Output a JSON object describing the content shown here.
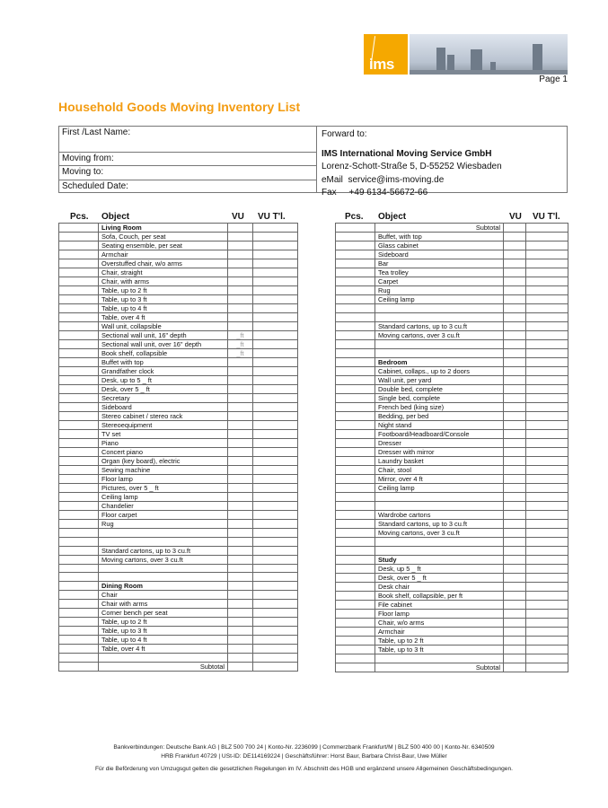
{
  "header": {
    "logo_text": "ims",
    "page_label": "Page 1",
    "title": "Household Goods Moving Inventory List"
  },
  "colors": {
    "accent": "#f39c12",
    "logo": "#f5a800"
  },
  "info": {
    "first_last_name": "First /Last Name:",
    "moving_from": "Moving from:",
    "moving_to": "Moving to:",
    "scheduled_date": "Scheduled Date:",
    "forward_to": "Forward to:",
    "company": "IMS International Moving Service GmbH",
    "address": "Lorenz-Schott-Straße 5, D-55252 Wiesbaden",
    "email": "eMail  service@ims-moving.de",
    "fax": "Fax     +49 6134-56672-66"
  },
  "columns": {
    "pcs": "Pcs.",
    "object": "Object",
    "vu": "VU",
    "vu_total": "VU T'l."
  },
  "left_rows": [
    {
      "t": "Living Room",
      "h": true
    },
    {
      "t": "Sofa, Couch, per seat"
    },
    {
      "t": "Seating ensemble, per seat"
    },
    {
      "t": "Armchair"
    },
    {
      "t": "Overstuffed chair, w/o arms"
    },
    {
      "t": "Chair, straight"
    },
    {
      "t": "Chair, with arms"
    },
    {
      "t": "Table, up to 2 ft"
    },
    {
      "t": "Table, up to 3 ft"
    },
    {
      "t": "Table, up to 4 ft"
    },
    {
      "t": "Table, over 4 ft"
    },
    {
      "t": "Wall unit, collapsible"
    },
    {
      "t": "Sectional wall unit, 16\" depth",
      "vu": "_ft"
    },
    {
      "t": "Sectional wall unit, over 16\" depth",
      "vu": "_ft"
    },
    {
      "t": "Book shelf, collapsible",
      "vu": "_ft"
    },
    {
      "t": "Buffet with top"
    },
    {
      "t": "Grandfather clock"
    },
    {
      "t": "Desk, up to 5 _ ft"
    },
    {
      "t": "Desk, over 5 _ ft"
    },
    {
      "t": "Secretary"
    },
    {
      "t": "Sideboard"
    },
    {
      "t": "Stereo cabinet / stereo rack"
    },
    {
      "t": "Stereoequipment"
    },
    {
      "t": "TV set"
    },
    {
      "t": "Piano"
    },
    {
      "t": "Concert piano"
    },
    {
      "t": "Organ (key board), electric"
    },
    {
      "t": "Sewing machine"
    },
    {
      "t": "Floor lamp"
    },
    {
      "t": "Pictures, over 5 _ ft"
    },
    {
      "t": "Ceiling lamp"
    },
    {
      "t": "Chandelier"
    },
    {
      "t": "Floor carpet"
    },
    {
      "t": "Rug"
    },
    {
      "t": ""
    },
    {
      "t": ""
    },
    {
      "t": "Standard cartons, up to 3 cu.ft"
    },
    {
      "t": "Moving cartons, over 3 cu.ft"
    },
    {
      "t": ""
    },
    {
      "t": ""
    },
    {
      "t": "Dining Room",
      "h": true
    },
    {
      "t": "Chair"
    },
    {
      "t": "Chair with arms"
    },
    {
      "t": "Corner bench per seat"
    },
    {
      "t": "Table, up to 2 ft"
    },
    {
      "t": "Table, up to 3 ft"
    },
    {
      "t": "Table, up to 4 ft"
    },
    {
      "t": "Table, over 4 ft"
    },
    {
      "t": ""
    },
    {
      "t": "Subtotal",
      "s": true
    }
  ],
  "right_rows": [
    {
      "t": "Subtotal",
      "s": true
    },
    {
      "t": "Buffet, with top"
    },
    {
      "t": "Glass cabinet"
    },
    {
      "t": "Sideboard"
    },
    {
      "t": "Bar"
    },
    {
      "t": "Tea trolley"
    },
    {
      "t": "Carpet"
    },
    {
      "t": "Rug"
    },
    {
      "t": "Ceiling lamp"
    },
    {
      "t": ""
    },
    {
      "t": ""
    },
    {
      "t": "Standard cartons, up to 3 cu.ft"
    },
    {
      "t": "Moving cartons, over 3 cu.ft"
    },
    {
      "t": ""
    },
    {
      "t": ""
    },
    {
      "t": "Bedroom",
      "h": true
    },
    {
      "t": "Cabinet, collaps., up to 2 doors"
    },
    {
      "t": "Wall unit, per yard"
    },
    {
      "t": "Double bed, complete"
    },
    {
      "t": "Single bed, complete"
    },
    {
      "t": "French bed (king size)"
    },
    {
      "t": "Bedding, per bed"
    },
    {
      "t": "Night stand"
    },
    {
      "t": "Footboard/Headboard/Console"
    },
    {
      "t": "Dresser"
    },
    {
      "t": "Dresser with mirror"
    },
    {
      "t": "Laundry basket"
    },
    {
      "t": "Chair, stool"
    },
    {
      "t": "Mirror, over 4 ft"
    },
    {
      "t": "Ceiling lamp"
    },
    {
      "t": ""
    },
    {
      "t": ""
    },
    {
      "t": "Wardrobe cartons"
    },
    {
      "t": "Standard cartons, up to 3 cu.ft"
    },
    {
      "t": "Moving cartons, over 3 cu.ft"
    },
    {
      "t": ""
    },
    {
      "t": ""
    },
    {
      "t": "Study",
      "h": true
    },
    {
      "t": "Desk, up 5 _ ft"
    },
    {
      "t": "Desk, over 5 _ ft"
    },
    {
      "t": "Desk chair"
    },
    {
      "t": "Book shelf, collapsible, per ft"
    },
    {
      "t": "File cabinet"
    },
    {
      "t": "Floor lamp"
    },
    {
      "t": "Chair, w/o arms"
    },
    {
      "t": "Armchair"
    },
    {
      "t": "Table, up to 2 ft"
    },
    {
      "t": "Table, up to 3 ft"
    },
    {
      "t": ""
    },
    {
      "t": "Subtotal",
      "s": true
    }
  ],
  "footer": {
    "bank_line": "Bankverbindungen: Deutsche Bank AG | BLZ 500 700 24 | Konto-Nr. 2236099 | Commerzbank Frankfurt/M | BLZ 500 400 00 | Konto-Nr. 6340509",
    "registry_line": "HRB Frankfurt 40729 | USt-ID: DE114169224 | Geschäftsführer: Horst Baur, Barbara Christ-Baur, Uwe Müller",
    "terms_line": "Für die Beförderung von Umzugsgut gelten die gesetzlichen Regelungen im IV. Abschnitt des HGB und ergänzend unsere Allgemeinen Geschäftsbedingungen."
  }
}
